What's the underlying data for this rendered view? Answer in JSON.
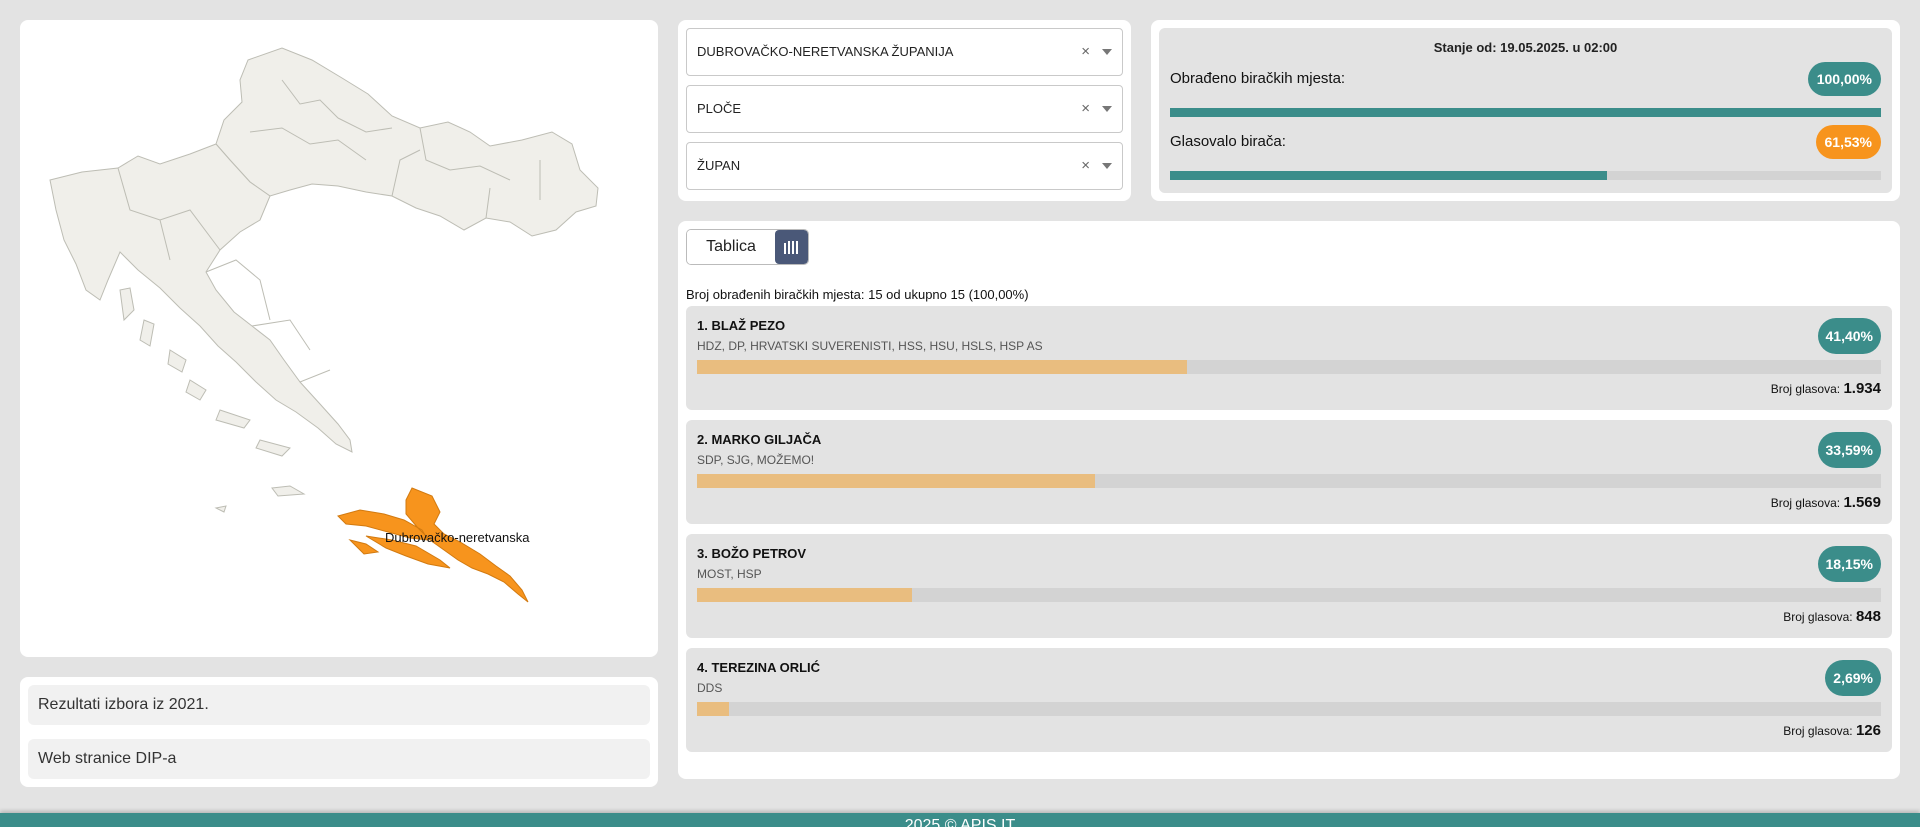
{
  "map": {
    "selected_region_label": "Dubrovačko-neretvanska",
    "base_color": "#f0efea",
    "border_color": "#bdbdb4",
    "highlight_color": "#f7941d"
  },
  "links": [
    {
      "label": "Rezultati izbora iz 2021."
    },
    {
      "label": "Web stranice DIP-a"
    }
  ],
  "filters": {
    "county": "DUBROVAČKO-NERETVANSKA ŽUPANIJA",
    "municipality": "PLOČE",
    "election_type": "ŽUPAN",
    "clear_symbol": "×"
  },
  "status": {
    "as_of": "Stanje od: 19.05.2025. u 02:00",
    "processed_label": "Obrađeno biračkih mjesta:",
    "processed_value": "100,00%",
    "processed_fraction": 1.0,
    "turnout_label": "Glasovalo birača:",
    "turnout_value": "61,53%",
    "turnout_fraction": 0.6153
  },
  "results": {
    "view_toggle_label": "Tablica",
    "processed_text": "Broj obrađenih biračkih mjesta: 15 od ukupno 15 (100,00%)",
    "votes_label": "Broj glasova:",
    "candidates": [
      {
        "name": "1. BLAŽ PEZO",
        "parties": "HDZ, DP, HRVATSKI SUVERENISTI, HSS, HSU, HSLS, HSP AS",
        "percent": "41,40%",
        "fraction": 0.414,
        "votes": "1.934"
      },
      {
        "name": "2. MARKO GILJAČA",
        "parties": "SDP, SJG, MOŽEMO!",
        "percent": "33,59%",
        "fraction": 0.3359,
        "votes": "1.569"
      },
      {
        "name": "3. BOŽO PETROV",
        "parties": "MOST, HSP",
        "percent": "18,15%",
        "fraction": 0.1815,
        "votes": "848"
      },
      {
        "name": "4. TEREZINA ORLIĆ",
        "parties": "DDS",
        "percent": "2,69%",
        "fraction": 0.0269,
        "votes": "126"
      }
    ]
  },
  "footer": {
    "text": "2025 © APIS IT"
  },
  "colors": {
    "accent_teal": "#3b8d8a",
    "accent_orange": "#f7941d",
    "bar_fill": "#e9bd7f",
    "toggle_dark": "#4a5878"
  }
}
